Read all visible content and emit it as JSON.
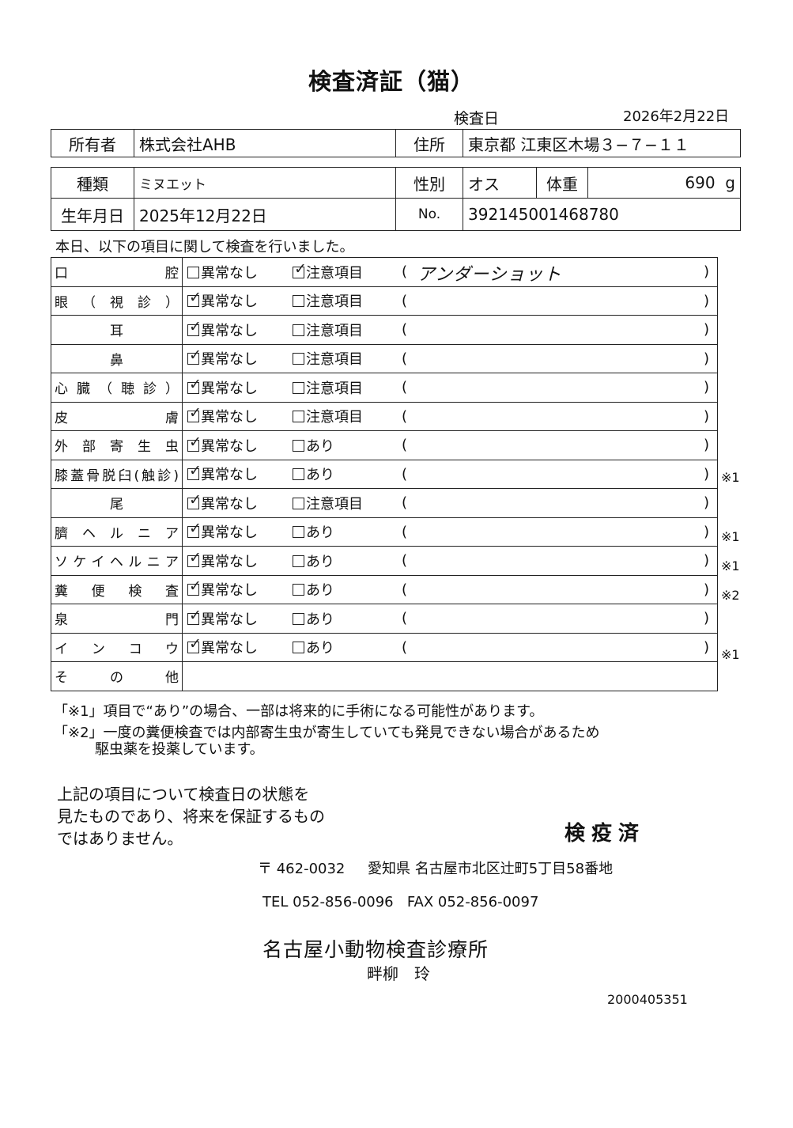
{
  "title": "検査済証（猫）",
  "exam_date_label": "検査日",
  "exam_date": "2026年2月22日",
  "owner": {
    "label": "所有者",
    "value": "株式会社AHB"
  },
  "address": {
    "label": "住所",
    "value": "東京都 江東区木場３−７−１１"
  },
  "breed": {
    "label": "種類",
    "value": "ミヌエット"
  },
  "sex": {
    "label": "性別",
    "value": "オス"
  },
  "weight": {
    "label": "体重",
    "value": "690",
    "unit": "g"
  },
  "birth": {
    "label": "生年月日",
    "value": "2025年12月22日"
  },
  "number": {
    "label": "No.",
    "value": "392145001468780"
  },
  "intro": "本日、以下の項目に関して検査を行いました。",
  "rows": [
    {
      "label": "口　　　　　腔",
      "center": false,
      "opt1": "異常なし",
      "opt2": "注意項目",
      "checked": 2,
      "note": "アンダーショット",
      "mark": ""
    },
    {
      "label": "眼（視診）",
      "center": false,
      "opt1": "異常なし",
      "opt2": "注意項目",
      "checked": 1,
      "note": "",
      "mark": ""
    },
    {
      "label": "耳",
      "center": true,
      "opt1": "異常なし",
      "opt2": "注意項目",
      "checked": 1,
      "note": "",
      "mark": ""
    },
    {
      "label": "鼻",
      "center": true,
      "opt1": "異常なし",
      "opt2": "注意項目",
      "checked": 1,
      "note": "",
      "mark": ""
    },
    {
      "label": "心臓（聴診）",
      "center": false,
      "opt1": "異常なし",
      "opt2": "注意項目",
      "checked": 1,
      "note": "",
      "mark": ""
    },
    {
      "label": "皮　　　　　膚",
      "center": false,
      "opt1": "異常なし",
      "opt2": "注意項目",
      "checked": 1,
      "note": "",
      "mark": ""
    },
    {
      "label": "外部寄生虫",
      "center": false,
      "opt1": "異常なし",
      "opt2": "あり",
      "checked": 1,
      "note": "",
      "mark": ""
    },
    {
      "label": "膝蓋骨脱臼(触診)",
      "center": false,
      "opt1": "異常なし",
      "opt2": "あり",
      "checked": 1,
      "note": "",
      "mark": "※1"
    },
    {
      "label": "尾",
      "center": true,
      "opt1": "異常なし",
      "opt2": "注意項目",
      "checked": 1,
      "note": "",
      "mark": ""
    },
    {
      "label": "臍ヘルニア",
      "center": false,
      "opt1": "異常なし",
      "opt2": "あり",
      "checked": 1,
      "note": "",
      "mark": "※1"
    },
    {
      "label": "ソケイヘルニア",
      "center": false,
      "opt1": "異常なし",
      "opt2": "あり",
      "checked": 1,
      "note": "",
      "mark": "※1"
    },
    {
      "label": "糞便検査",
      "center": false,
      "opt1": "異常なし",
      "opt2": "あり",
      "checked": 1,
      "note": "",
      "mark": "※2"
    },
    {
      "label": "泉　　　　　門",
      "center": false,
      "opt1": "異常なし",
      "opt2": "あり",
      "checked": 1,
      "note": "",
      "mark": ""
    },
    {
      "label": "インコウ",
      "center": false,
      "opt1": "異常なし",
      "opt2": "あり",
      "checked": 1,
      "note": "",
      "mark": "※1"
    }
  ],
  "other_label": "そ　の　他",
  "footnote1": "「※1」項目で“あり”の場合、一部は将来的に手術になる可能性があります。",
  "footnote2a": "「※2」一度の糞便検査では内部寄生虫が寄生していても発見できない場合があるため",
  "footnote2b": "駆虫薬を投薬しています。",
  "disclaimer": [
    "上記の項目について検査日の状態を",
    "見たものであり、将来を保証するもの",
    "ではありません。"
  ],
  "stamp": "検疫済",
  "postal": "〒 462-0032",
  "clinic_address": "愛知県 名古屋市北区辻町5丁目58番地",
  "tel": "TEL 052-856-0096",
  "fax": "FAX 052-856-0097",
  "clinic_name": "名古屋小動物検査診療所",
  "doctor": "畔柳　玲",
  "doc_code": "2000405351"
}
